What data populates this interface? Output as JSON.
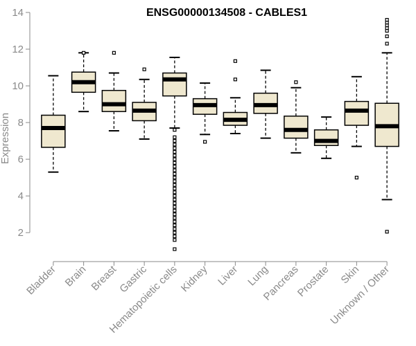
{
  "chart_data": {
    "type": "box",
    "title": "ENSG00000134508 - CABLES1",
    "xlabel": "",
    "ylabel": "Expression",
    "ylim": [
      0.8,
      14.0
    ],
    "yticks": [
      2,
      4,
      6,
      8,
      10,
      12,
      14
    ],
    "box_fill": "#efe8cf",
    "categories": [
      "Bladder",
      "Brain",
      "Breast",
      "Gastric",
      "Hematopoietic cells",
      "Kidney",
      "Liver",
      "Lung",
      "Pancreas",
      "Prostate",
      "Skin",
      "Unknown / Other"
    ],
    "boxes": [
      {
        "whisker_low": 5.3,
        "q1": 6.65,
        "median": 7.7,
        "q3": 8.4,
        "whisker_high": 10.55,
        "outliers": []
      },
      {
        "whisker_low": 8.6,
        "q1": 9.65,
        "median": 10.2,
        "q3": 10.75,
        "whisker_high": 11.8,
        "outliers": [
          11.8
        ]
      },
      {
        "whisker_low": 7.55,
        "q1": 8.6,
        "median": 9.0,
        "q3": 9.75,
        "whisker_high": 10.7,
        "outliers": [
          11.8
        ]
      },
      {
        "whisker_low": 7.1,
        "q1": 8.1,
        "median": 8.65,
        "q3": 9.1,
        "whisker_high": 10.35,
        "outliers": [
          10.9
        ]
      },
      {
        "whisker_low": 7.7,
        "q1": 9.45,
        "median": 10.35,
        "q3": 10.7,
        "whisker_high": 11.55,
        "outliers": [
          7.6,
          7.2,
          7.0,
          6.8,
          6.6,
          6.4,
          6.2,
          6.0,
          5.8,
          5.6,
          5.4,
          5.2,
          5.0,
          4.8,
          4.6,
          4.4,
          4.2,
          4.0,
          3.8,
          3.6,
          3.4,
          3.2,
          3.0,
          2.8,
          2.6,
          2.4,
          2.2,
          2.0,
          1.8,
          1.6,
          1.1
        ]
      },
      {
        "whisker_low": 7.35,
        "q1": 8.45,
        "median": 8.95,
        "q3": 9.3,
        "whisker_high": 10.15,
        "outliers": [
          6.95
        ]
      },
      {
        "whisker_low": 7.4,
        "q1": 7.85,
        "median": 8.15,
        "q3": 8.55,
        "whisker_high": 9.35,
        "outliers": [
          10.35,
          11.35
        ]
      },
      {
        "whisker_low": 7.15,
        "q1": 8.5,
        "median": 8.95,
        "q3": 9.6,
        "whisker_high": 10.85,
        "outliers": []
      },
      {
        "whisker_low": 6.35,
        "q1": 7.15,
        "median": 7.6,
        "q3": 8.35,
        "whisker_high": 9.9,
        "outliers": [
          10.2
        ]
      },
      {
        "whisker_low": 6.05,
        "q1": 6.75,
        "median": 7.0,
        "q3": 7.6,
        "whisker_high": 8.3,
        "outliers": []
      },
      {
        "whisker_low": 6.7,
        "q1": 7.85,
        "median": 8.65,
        "q3": 9.15,
        "whisker_high": 10.5,
        "outliers": [
          5.0
        ]
      },
      {
        "whisker_low": 3.8,
        "q1": 6.7,
        "median": 7.8,
        "q3": 9.05,
        "whisker_high": 11.8,
        "outliers": [
          2.05,
          12.3,
          12.7,
          13.0,
          13.15,
          13.3,
          13.45,
          13.6
        ]
      }
    ]
  }
}
